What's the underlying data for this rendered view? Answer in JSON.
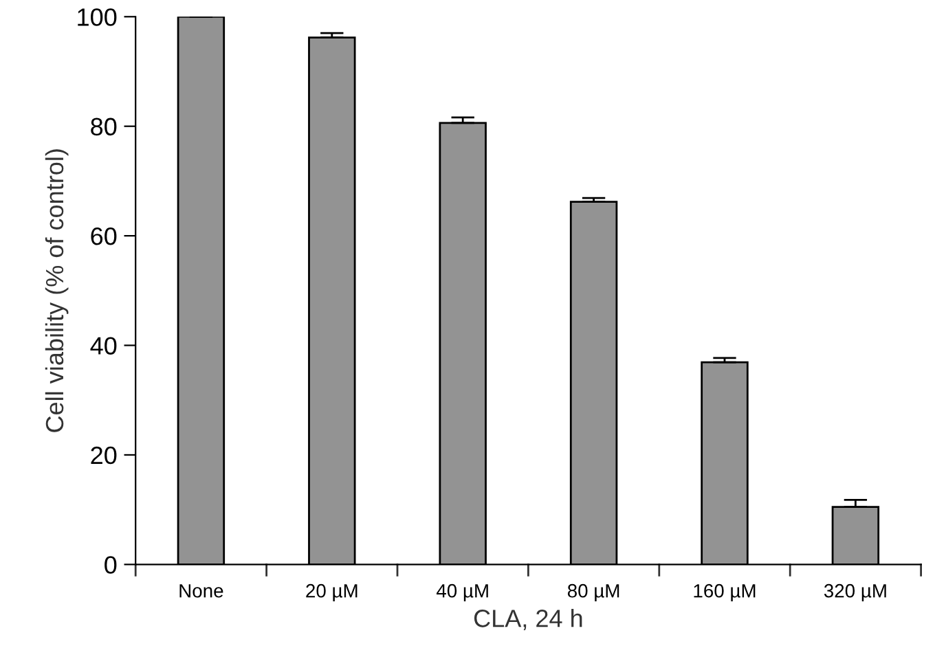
{
  "chart_data": {
    "type": "bar",
    "xlabel": "CLA, 24 h",
    "ylabel": "Cell viability (% of control)",
    "categories": [
      "None",
      "20 µM",
      "40 µM",
      "80 µM",
      "160 µM",
      "320 µM"
    ],
    "values": [
      100,
      96.2,
      80.6,
      66.2,
      36.9,
      10.5
    ],
    "errors": [
      0.3,
      0.8,
      1.0,
      0.7,
      0.8,
      1.3
    ],
    "color": "#939393",
    "ylim": [
      0,
      100
    ],
    "yticks": [
      0,
      20,
      40,
      60,
      80,
      100
    ],
    "grid": false
  }
}
